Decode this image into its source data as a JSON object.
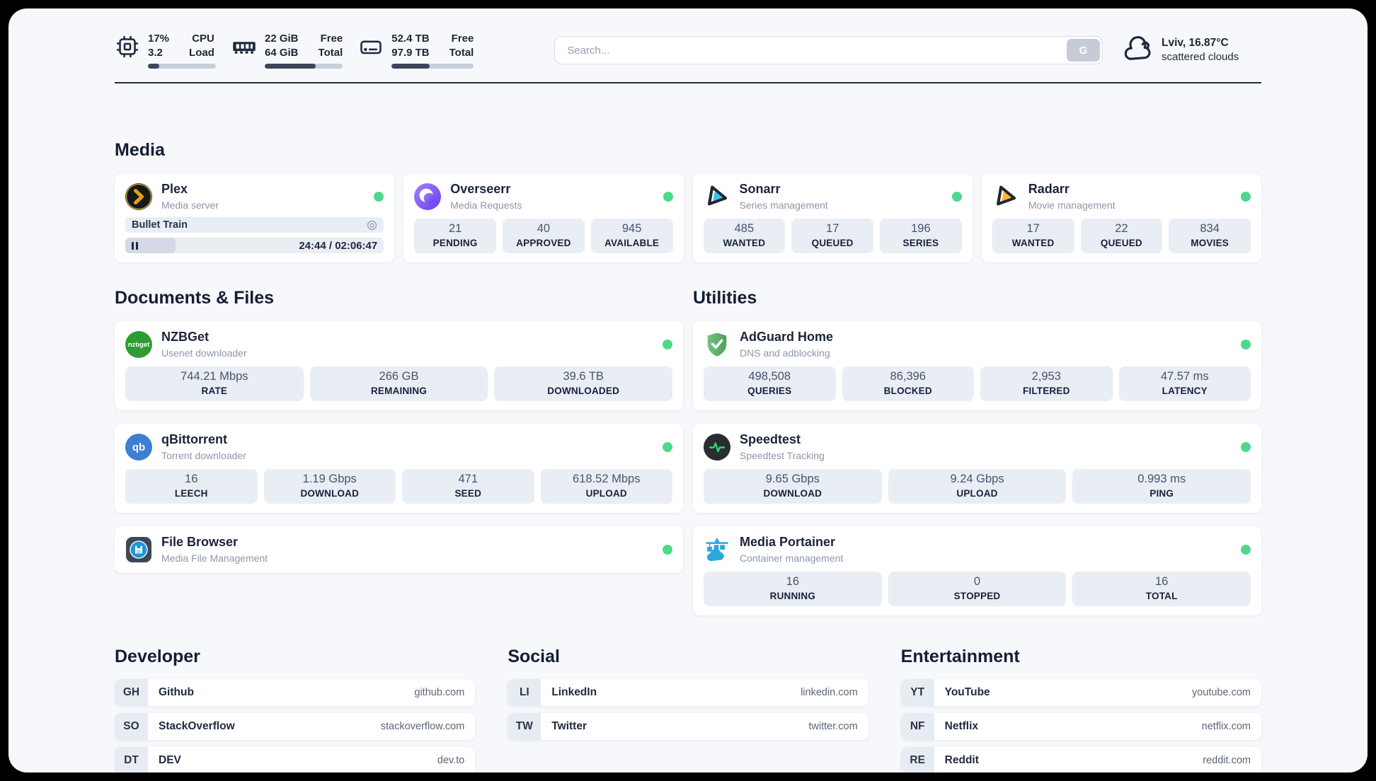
{
  "header": {
    "cpu": {
      "values": [
        "17%",
        "3.2"
      ],
      "labels": [
        "CPU",
        "Load"
      ],
      "progress": 17
    },
    "memory": {
      "values": [
        "22 GiB",
        "64 GiB"
      ],
      "labels": [
        "Free",
        "Total"
      ],
      "progress": 65
    },
    "disk": {
      "values": [
        "52.4 TB",
        "97.9 TB"
      ],
      "labels": [
        "Free",
        "Total"
      ],
      "progress": 46
    },
    "search": {
      "placeholder": "Search...",
      "button_label": "G"
    },
    "weather": {
      "location_temp": "Lviv, 16.87°C",
      "condition": "scattered clouds",
      "icon": "cloud"
    }
  },
  "sections": {
    "media": {
      "title": "Media",
      "apps": {
        "plex": {
          "name": "Plex",
          "subtitle": "Media server",
          "status": "online",
          "now_playing": {
            "title": "Bullet Train",
            "time_display": "24:44 / 02:06:47",
            "progress_pct": 19.5,
            "state": "paused"
          }
        },
        "overseerr": {
          "name": "Overseerr",
          "subtitle": "Media Requests",
          "status": "online",
          "stats": [
            {
              "value": "21",
              "label": "PENDING"
            },
            {
              "value": "40",
              "label": "APPROVED"
            },
            {
              "value": "945",
              "label": "AVAILABLE"
            }
          ]
        },
        "sonarr": {
          "name": "Sonarr",
          "subtitle": "Series management",
          "status": "online",
          "stats": [
            {
              "value": "485",
              "label": "WANTED"
            },
            {
              "value": "17",
              "label": "QUEUED"
            },
            {
              "value": "196",
              "label": "SERIES"
            }
          ]
        },
        "radarr": {
          "name": "Radarr",
          "subtitle": "Movie management",
          "status": "online",
          "stats": [
            {
              "value": "17",
              "label": "WANTED"
            },
            {
              "value": "22",
              "label": "QUEUED"
            },
            {
              "value": "834",
              "label": "MOVIES"
            }
          ]
        }
      }
    },
    "documents": {
      "title": "Documents & Files",
      "apps": {
        "nzbget": {
          "name": "NZBGet",
          "subtitle": "Usenet downloader",
          "status": "online",
          "icon_text": "nzbget",
          "stats": [
            {
              "value": "744.21 Mbps",
              "label": "RATE"
            },
            {
              "value": "266 GB",
              "label": "REMAINING"
            },
            {
              "value": "39.6 TB",
              "label": "DOWNLOADED"
            }
          ]
        },
        "qbittorrent": {
          "name": "qBittorrent",
          "subtitle": "Torrent downloader",
          "status": "online",
          "icon_text": "qb",
          "stats": [
            {
              "value": "16",
              "label": "LEECH"
            },
            {
              "value": "1.19 Gbps",
              "label": "DOWNLOAD"
            },
            {
              "value": "471",
              "label": "SEED"
            },
            {
              "value": "618.52 Mbps",
              "label": "UPLOAD"
            }
          ]
        },
        "filebrowser": {
          "name": "File Browser",
          "subtitle": "Media File Management",
          "status": "online"
        }
      }
    },
    "utilities": {
      "title": "Utilities",
      "apps": {
        "adguard": {
          "name": "AdGuard Home",
          "subtitle": "DNS and adblocking",
          "status": "online",
          "stats": [
            {
              "value": "498,508",
              "label": "QUERIES"
            },
            {
              "value": "86,396",
              "label": "BLOCKED"
            },
            {
              "value": "2,953",
              "label": "FILTERED"
            },
            {
              "value": "47.57 ms",
              "label": "LATENCY"
            }
          ]
        },
        "speedtest": {
          "name": "Speedtest",
          "subtitle": "Speedtest Tracking",
          "status": "online",
          "stats": [
            {
              "value": "9.65 Gbps",
              "label": "DOWNLOAD"
            },
            {
              "value": "9.24 Gbps",
              "label": "UPLOAD"
            },
            {
              "value": "0.993 ms",
              "label": "PING"
            }
          ]
        },
        "portainer": {
          "name": "Media Portainer",
          "subtitle": "Container management",
          "status": "online",
          "stats": [
            {
              "value": "16",
              "label": "RUNNING"
            },
            {
              "value": "0",
              "label": "STOPPED"
            },
            {
              "value": "16",
              "label": "TOTAL"
            }
          ]
        }
      }
    },
    "link_sections": [
      {
        "title": "Developer",
        "items": [
          {
            "badge": "GH",
            "name": "Github",
            "url": "github.com"
          },
          {
            "badge": "SO",
            "name": "StackOverflow",
            "url": "stackoverflow.com"
          },
          {
            "badge": "DT",
            "name": "DEV",
            "url": "dev.to"
          }
        ]
      },
      {
        "title": "Social",
        "items": [
          {
            "badge": "LI",
            "name": "LinkedIn",
            "url": "linkedin.com"
          },
          {
            "badge": "TW",
            "name": "Twitter",
            "url": "twitter.com"
          }
        ]
      },
      {
        "title": "Entertainment",
        "items": [
          {
            "badge": "YT",
            "name": "YouTube",
            "url": "youtube.com"
          },
          {
            "badge": "NF",
            "name": "Netflix",
            "url": "netflix.com"
          },
          {
            "badge": "RE",
            "name": "Reddit",
            "url": "reddit.com"
          }
        ]
      }
    ]
  },
  "colors": {
    "status_online": "#4ed88c",
    "plex_amber": "#e5a00d",
    "overseerr_purple": "#7c5bf2",
    "sonarr_cyan": "#36c3f1",
    "radarr_gold": "#ffb43a",
    "nzbget_green": "#2f9c33",
    "qbittorrent_blue": "#3d7fd0",
    "adguard_green": "#5cb767",
    "speedtest_green": "#2ed573",
    "portainer_blue": "#2aa7df",
    "bar_fill": "#3b465b",
    "panel_bg": "#f7f8fb"
  }
}
